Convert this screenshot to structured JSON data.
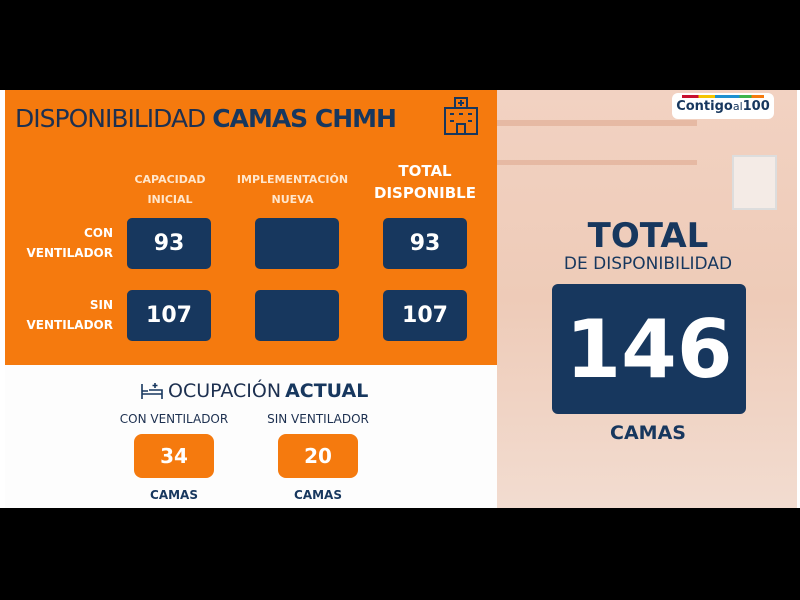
{
  "title": {
    "light": "DISPONIBILIDAD",
    "bold": "CAMAS CHMH",
    "icon": "hospital-icon"
  },
  "columns": {
    "capacidad": [
      "CAPACIDAD",
      "INICIAL"
    ],
    "implementacion": [
      "IMPLEMENTACIÓN",
      "NUEVA"
    ],
    "total": [
      "TOTAL",
      "DISPONIBLE"
    ]
  },
  "rows": [
    {
      "label": [
        "CON",
        "VENTILADOR"
      ],
      "capacidad": "93",
      "implementacion": "",
      "total": "93"
    },
    {
      "label": [
        "SIN",
        "VENTILADOR"
      ],
      "capacidad": "107",
      "implementacion": "",
      "total": "107"
    }
  ],
  "ocupacion": {
    "light": "OCUPACIÓN",
    "bold": "ACTUAL",
    "icon": "bed-icon",
    "items": [
      {
        "label": "CON VENTILADOR",
        "value": "34",
        "unit": "CAMAS"
      },
      {
        "label": "SIN VENTILADOR",
        "value": "20",
        "unit": "CAMAS"
      }
    ]
  },
  "logo": {
    "text": "Contigo",
    "small": "al",
    "num": "100"
  },
  "total": {
    "line1": "TOTAL",
    "line2": "DE DISPONIBILIDAD",
    "value": "146",
    "unit": "CAMAS"
  },
  "colors": {
    "orange": "#f57a0e",
    "navy": "#17375e"
  }
}
